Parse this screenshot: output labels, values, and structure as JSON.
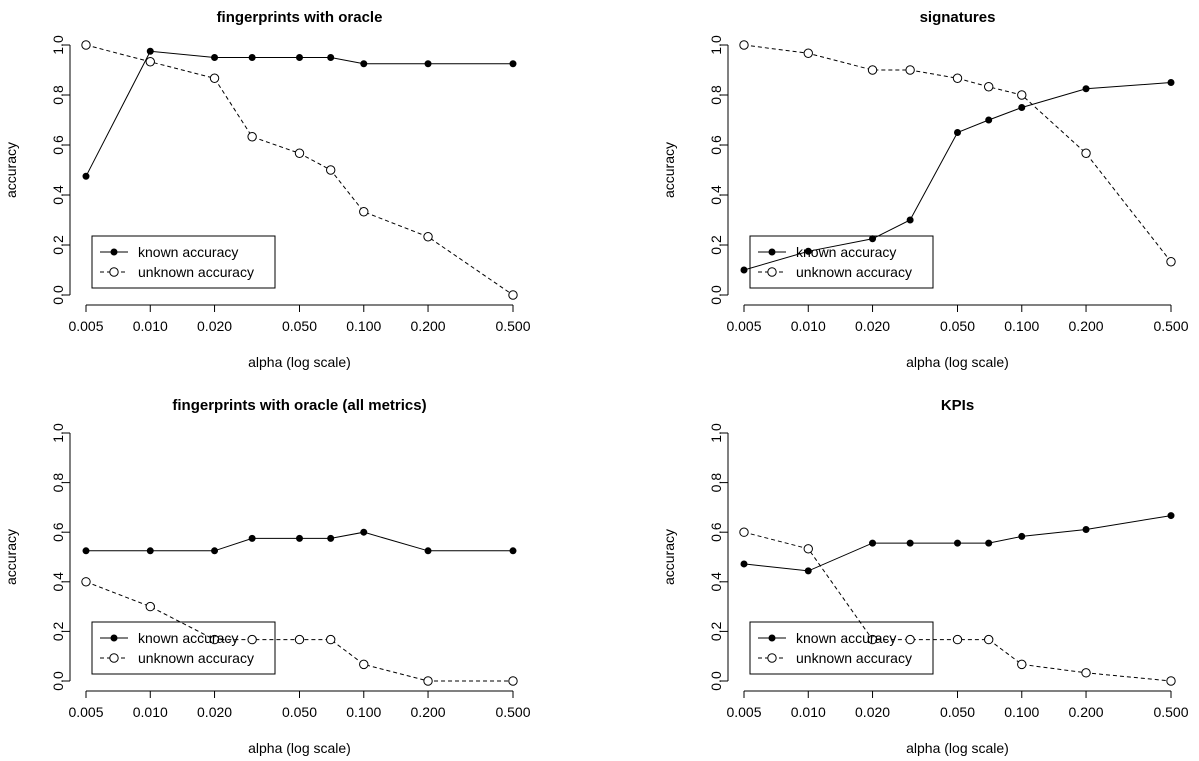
{
  "chart_data": [
    {
      "type": "line",
      "title": "fingerprints with oracle",
      "xlabel": "alpha (log scale)",
      "ylabel": "accuracy",
      "x_scale": "log",
      "xlim": [
        0.005,
        0.5
      ],
      "ylim": [
        0,
        1
      ],
      "grid": false,
      "legend_position": "bottom-left",
      "x": [
        0.005,
        0.01,
        0.02,
        0.03,
        0.05,
        0.07,
        0.1,
        0.2,
        0.5
      ],
      "x_ticks": [
        "0.005",
        "0.010",
        "0.020",
        "0.050",
        "0.100",
        "0.200",
        "0.500"
      ],
      "y_ticks": [
        "0.0",
        "0.2",
        "0.4",
        "0.6",
        "0.8",
        "1.0"
      ],
      "series": [
        {
          "name": "known accuracy",
          "style": "solid",
          "marker": "filled-circle",
          "values": [
            0.475,
            0.975,
            0.95,
            0.95,
            0.95,
            0.95,
            0.925,
            0.925,
            0.925
          ]
        },
        {
          "name": "unknown accuracy",
          "style": "dashed",
          "marker": "open-circle",
          "values": [
            1.0,
            0.933,
            0.867,
            0.633,
            0.567,
            0.5,
            0.333,
            0.233,
            0.0
          ]
        }
      ]
    },
    {
      "type": "line",
      "title": "signatures",
      "xlabel": "alpha (log scale)",
      "ylabel": "accuracy",
      "x_scale": "log",
      "xlim": [
        0.005,
        0.5
      ],
      "ylim": [
        0,
        1
      ],
      "grid": false,
      "legend_position": "bottom-left",
      "x": [
        0.005,
        0.01,
        0.02,
        0.03,
        0.05,
        0.07,
        0.1,
        0.2,
        0.5
      ],
      "x_ticks": [
        "0.005",
        "0.010",
        "0.020",
        "0.050",
        "0.100",
        "0.200",
        "0.500"
      ],
      "y_ticks": [
        "0.0",
        "0.2",
        "0.4",
        "0.6",
        "0.8",
        "1.0"
      ],
      "series": [
        {
          "name": "known accuracy",
          "style": "solid",
          "marker": "filled-circle",
          "values": [
            0.1,
            0.175,
            0.225,
            0.3,
            0.65,
            0.7,
            0.75,
            0.825,
            0.85
          ]
        },
        {
          "name": "unknown accuracy",
          "style": "dashed",
          "marker": "open-circle",
          "values": [
            1.0,
            0.967,
            0.9,
            0.9,
            0.867,
            0.833,
            0.8,
            0.567,
            0.133
          ]
        }
      ]
    },
    {
      "type": "line",
      "title": "fingerprints with oracle (all metrics)",
      "xlabel": "alpha (log scale)",
      "ylabel": "accuracy",
      "x_scale": "log",
      "xlim": [
        0.005,
        0.5
      ],
      "ylim": [
        0,
        1
      ],
      "grid": false,
      "legend_position": "bottom-left",
      "x": [
        0.005,
        0.01,
        0.02,
        0.03,
        0.05,
        0.07,
        0.1,
        0.2,
        0.5
      ],
      "x_ticks": [
        "0.005",
        "0.010",
        "0.020",
        "0.050",
        "0.100",
        "0.200",
        "0.500"
      ],
      "y_ticks": [
        "0.0",
        "0.2",
        "0.4",
        "0.6",
        "0.8",
        "1.0"
      ],
      "series": [
        {
          "name": "known accuracy",
          "style": "solid",
          "marker": "filled-circle",
          "values": [
            0.525,
            0.525,
            0.525,
            0.575,
            0.575,
            0.575,
            0.6,
            0.525,
            0.525
          ]
        },
        {
          "name": "unknown accuracy",
          "style": "dashed",
          "marker": "open-circle",
          "values": [
            0.4,
            0.3,
            0.167,
            0.167,
            0.167,
            0.167,
            0.067,
            0.0,
            0.0
          ]
        }
      ]
    },
    {
      "type": "line",
      "title": "KPIs",
      "xlabel": "alpha (log scale)",
      "ylabel": "accuracy",
      "x_scale": "log",
      "xlim": [
        0.005,
        0.5
      ],
      "ylim": [
        0,
        1
      ],
      "grid": false,
      "legend_position": "bottom-left",
      "x": [
        0.005,
        0.01,
        0.02,
        0.03,
        0.05,
        0.07,
        0.1,
        0.2,
        0.5
      ],
      "x_ticks": [
        "0.005",
        "0.010",
        "0.020",
        "0.050",
        "0.100",
        "0.200",
        "0.500"
      ],
      "y_ticks": [
        "0.0",
        "0.2",
        "0.4",
        "0.6",
        "0.8",
        "1.0"
      ],
      "series": [
        {
          "name": "known accuracy",
          "style": "solid",
          "marker": "filled-circle",
          "values": [
            0.472,
            0.444,
            0.556,
            0.556,
            0.556,
            0.556,
            0.583,
            0.611,
            0.667
          ]
        },
        {
          "name": "unknown accuracy",
          "style": "dashed",
          "marker": "open-circle",
          "values": [
            0.6,
            0.533,
            0.167,
            0.167,
            0.167,
            0.167,
            0.067,
            0.033,
            0.0
          ]
        }
      ]
    }
  ]
}
